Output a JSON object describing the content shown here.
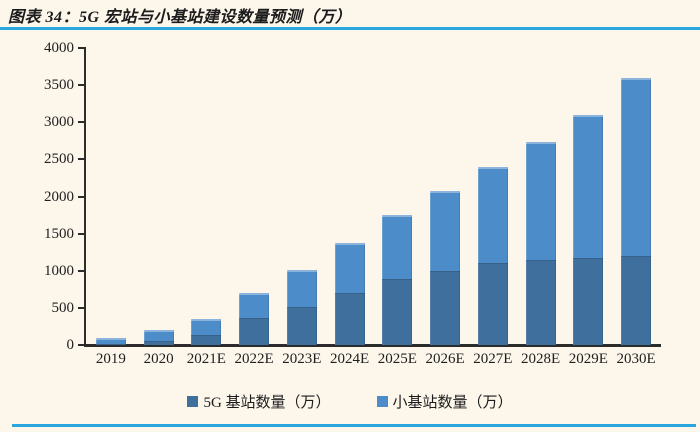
{
  "page": {
    "title": "图表 34：5G 宏站与小基站建设数量预测（万）"
  },
  "accent": {
    "rule_blue": "#2ba7df",
    "background": "#fcf6eb",
    "axis_color": "#2b2b2b"
  },
  "chart_data": {
    "type": "bar",
    "stacked": true,
    "title": "5G 宏站与小基站建设数量预测（万）",
    "categories": [
      "2019",
      "2020",
      "2021E",
      "2022E",
      "2023E",
      "2024E",
      "2025E",
      "2026E",
      "2027E",
      "2028E",
      "2029E",
      "2030E"
    ],
    "series": [
      {
        "name": "5G 基站数量（万）",
        "color": "#3f6f9d",
        "values": [
          20,
          60,
          130,
          360,
          510,
          700,
          890,
          1000,
          1100,
          1140,
          1170,
          1200
        ]
      },
      {
        "name": "小基站数量（万）",
        "color": "#4c8cc8",
        "values": [
          70,
          140,
          220,
          340,
          500,
          670,
          860,
          1080,
          1300,
          1590,
          1930,
          2400
        ]
      }
    ],
    "xlabel": "",
    "ylabel": "",
    "ylim": [
      0,
      4000
    ],
    "yticks": [
      0,
      500,
      1000,
      1500,
      2000,
      2500,
      3000,
      3500,
      4000
    ],
    "grid": false,
    "legend_position": "bottom"
  }
}
